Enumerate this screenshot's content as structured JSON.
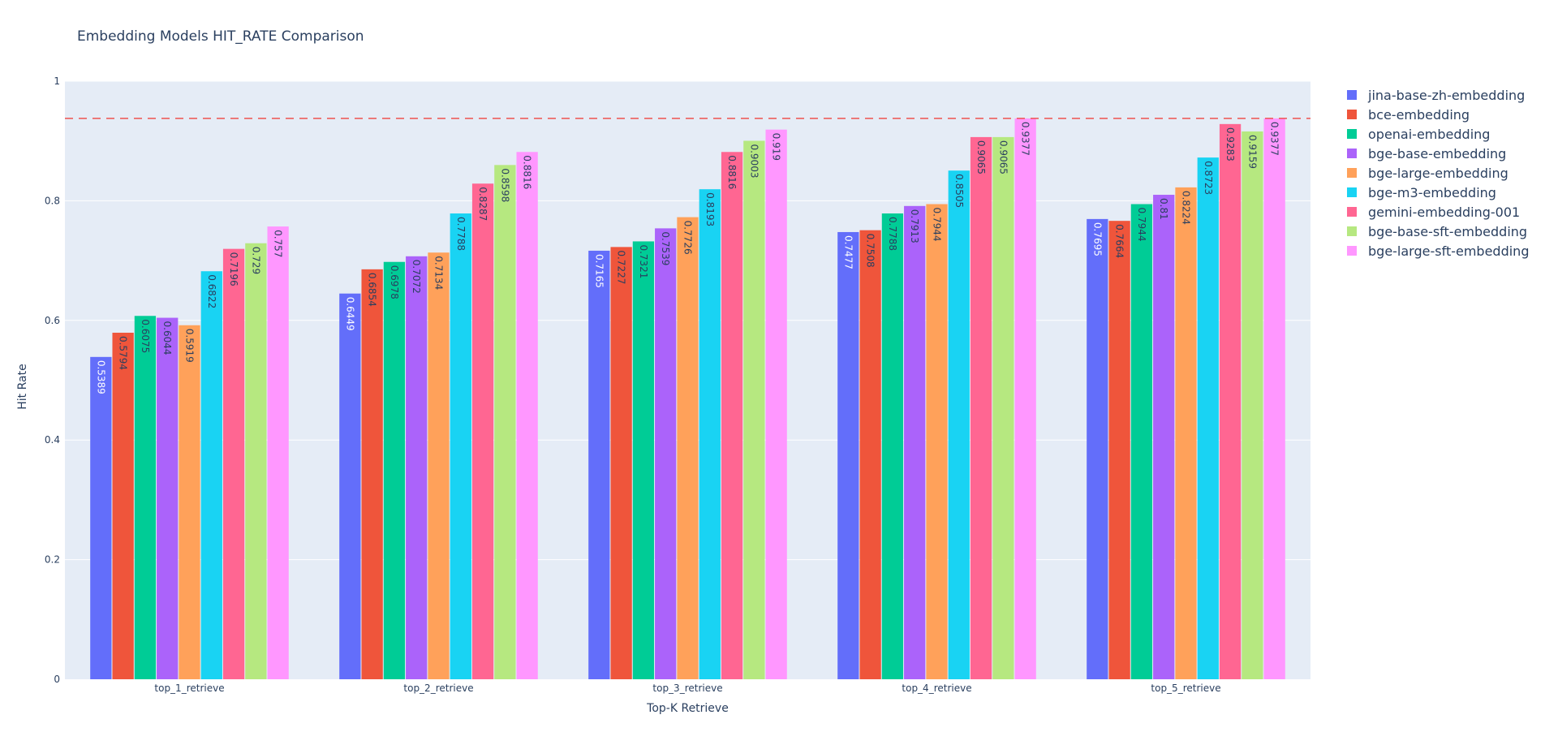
{
  "chart_data": {
    "type": "bar",
    "title": "Embedding Models HIT_RATE Comparison",
    "xlabel": "Top-K Retrieve",
    "ylabel": "Hit Rate",
    "ylim": [
      0,
      1
    ],
    "yticks": [
      0,
      0.2,
      0.4,
      0.6,
      0.8,
      1
    ],
    "ytick_labels": [
      "0",
      "0.2",
      "0.4",
      "0.6",
      "0.8",
      "1"
    ],
    "categories": [
      "top_1_retrieve",
      "top_2_retrieve",
      "top_3_retrieve",
      "top_4_retrieve",
      "top_5_retrieve"
    ],
    "reference_line": {
      "value": 0.9377,
      "style": "dashed",
      "color": "#ef5350"
    },
    "legend_position": "right",
    "grid": true,
    "plot_background": "#e5ecf6",
    "series": [
      {
        "name": "jina-base-zh-embedding",
        "color": "#636efa",
        "values": [
          0.5389,
          0.6449,
          0.7165,
          0.7477,
          0.7695
        ],
        "labels": [
          "0.5389",
          "0.6449",
          "0.7165",
          "0.7477",
          "0.7695"
        ]
      },
      {
        "name": "bce-embedding",
        "color": "#ef553b",
        "values": [
          0.5794,
          0.6854,
          0.7227,
          0.7508,
          0.7664
        ],
        "labels": [
          "0.5794",
          "0.6854",
          "0.7227",
          "0.7508",
          "0.7664"
        ]
      },
      {
        "name": "openai-embedding",
        "color": "#00cc96",
        "values": [
          0.6075,
          0.6978,
          0.7321,
          0.7788,
          0.7944
        ],
        "labels": [
          "0.6075",
          "0.6978",
          "0.7321",
          "0.7788",
          "0.7944"
        ]
      },
      {
        "name": "bge-base-embedding",
        "color": "#ab63fa",
        "values": [
          0.6044,
          0.7072,
          0.7539,
          0.7913,
          0.81
        ],
        "labels": [
          "0.6044",
          "0.7072",
          "0.7539",
          "0.7913",
          "0.81"
        ]
      },
      {
        "name": "bge-large-embedding",
        "color": "#ffa15a",
        "values": [
          0.5919,
          0.7134,
          0.7726,
          0.7944,
          0.8224
        ],
        "labels": [
          "0.5919",
          "0.7134",
          "0.7726",
          "0.7944",
          "0.8224"
        ]
      },
      {
        "name": "bge-m3-embedding",
        "color": "#19d3f3",
        "values": [
          0.6822,
          0.7788,
          0.8193,
          0.8505,
          0.8723
        ],
        "labels": [
          "0.6822",
          "0.7788",
          "0.8193",
          "0.8505",
          "0.8723"
        ]
      },
      {
        "name": "gemini-embedding-001",
        "color": "#ff6692",
        "values": [
          0.7196,
          0.8287,
          0.8816,
          0.9065,
          0.9283
        ],
        "labels": [
          "0.7196",
          "0.8287",
          "0.8816",
          "0.9065",
          "0.9283"
        ]
      },
      {
        "name": "bge-base-sft-embedding",
        "color": "#b6e880",
        "values": [
          0.729,
          0.8598,
          0.9003,
          0.9065,
          0.9159
        ],
        "labels": [
          "0.729",
          "0.8598",
          "0.9003",
          "0.9065",
          "0.9159"
        ]
      },
      {
        "name": "bge-large-sft-embedding",
        "color": "#ff97ff",
        "values": [
          0.757,
          0.8816,
          0.919,
          0.9377,
          0.9377
        ],
        "labels": [
          "0.757",
          "0.8816",
          "0.919",
          "0.9377",
          "0.9377"
        ]
      }
    ]
  }
}
